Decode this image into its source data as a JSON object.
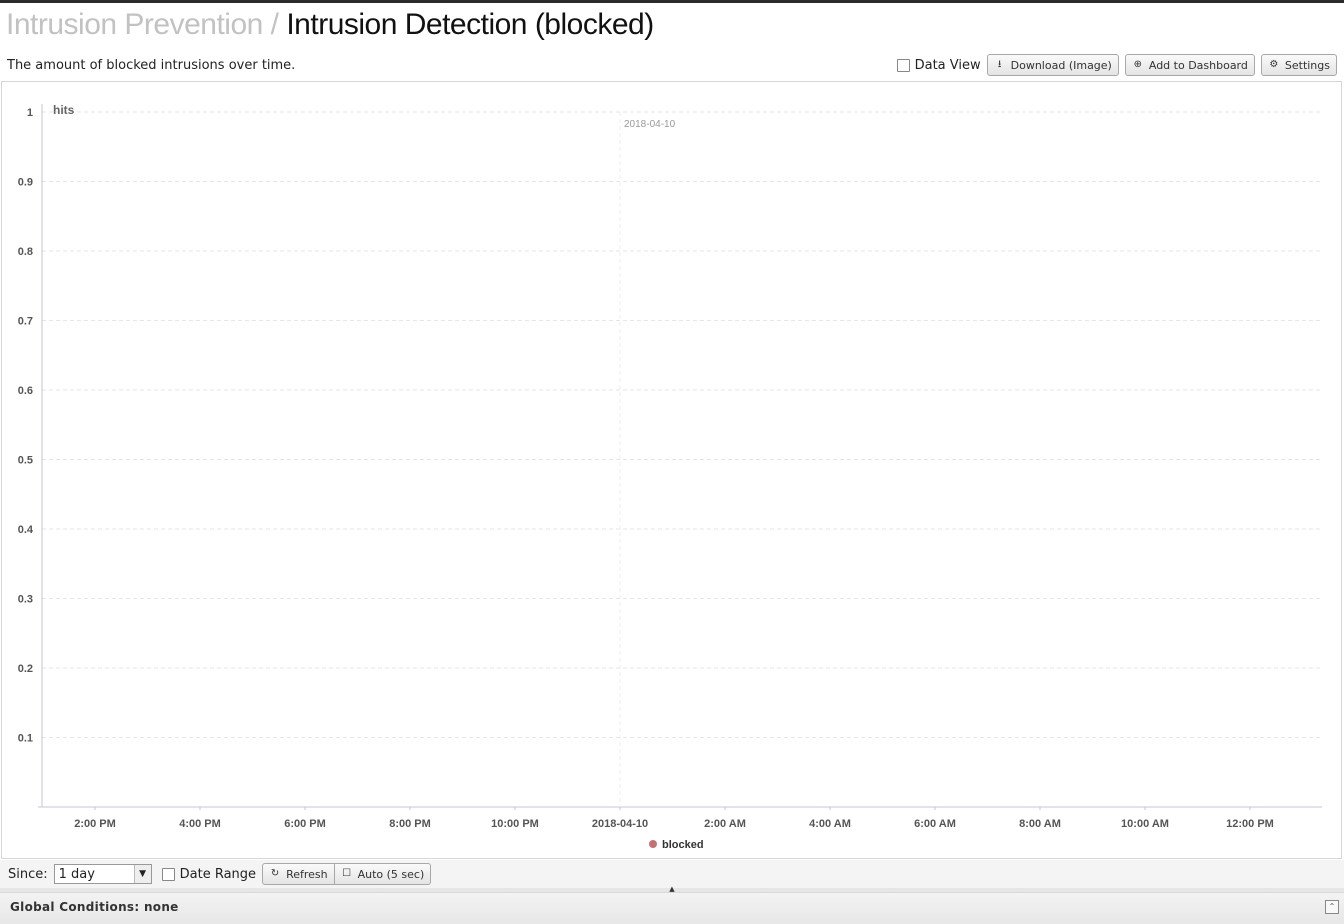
{
  "header": {
    "breadcrumb_parent": "Intrusion Prevention",
    "separator": " / ",
    "title": "Intrusion Detection (blocked)",
    "description": "The amount of blocked intrusions over time."
  },
  "toolbar": {
    "data_view_label": "Data View",
    "download_label": "Download (Image)",
    "add_dashboard_label": "Add to Dashboard",
    "settings_label": "Settings"
  },
  "chart_data": {
    "type": "line",
    "ylabel": "hits",
    "ylim": [
      0,
      1
    ],
    "y_ticks": [
      "1",
      "0.9",
      "0.8",
      "0.7",
      "0.6",
      "0.5",
      "0.4",
      "0.3",
      "0.2",
      "0.1"
    ],
    "x_ticks": [
      "2:00 PM",
      "4:00 PM",
      "6:00 PM",
      "8:00 PM",
      "10:00 PM",
      "2018-04-10",
      "2:00 AM",
      "4:00 AM",
      "6:00 AM",
      "8:00 AM",
      "10:00 AM",
      "12:00 PM"
    ],
    "date_marker": "2018-04-10",
    "grid": true,
    "legend_position": "bottom-center",
    "series": [
      {
        "name": "blocked",
        "color": "#c47174",
        "values": []
      }
    ]
  },
  "controls": {
    "since_label": "Since:",
    "since_value": "1 day",
    "date_range_label": "Date Range",
    "refresh_label": "Refresh",
    "auto_label": "Auto (5 sec)"
  },
  "footer": {
    "global_conditions": "Global Conditions: none"
  },
  "icons": {
    "download": "download-icon",
    "add": "plus-circle-icon",
    "settings": "gear-icon",
    "refresh": "refresh-icon",
    "collapse": "collapse-up-icon"
  }
}
